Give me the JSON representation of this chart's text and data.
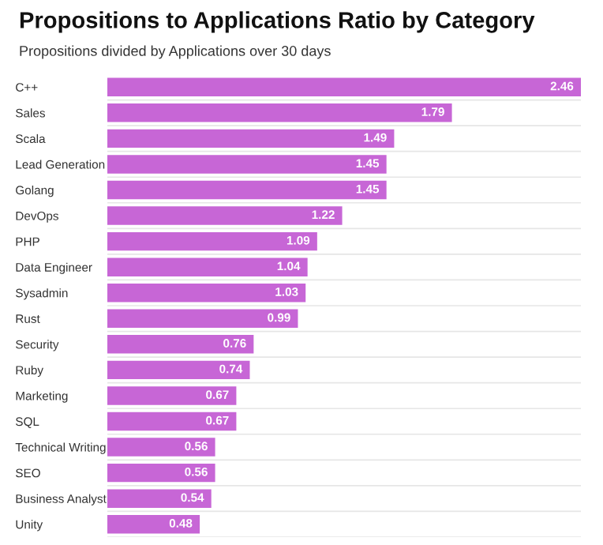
{
  "chart_data": {
    "type": "bar",
    "orientation": "horizontal",
    "title": "Propositions to Applications Ratio by Category",
    "subtitle": "Propositions divided by Applications over 30 days",
    "categories": [
      "C++",
      "Sales",
      "Scala",
      "Lead Generation",
      "Golang",
      "DevOps",
      "PHP",
      "Data Engineer",
      "Sysadmin",
      "Rust",
      "Security",
      "Ruby",
      "Marketing",
      "SQL",
      "Technical Writing",
      "SEO",
      "Business Analyst",
      "Unity"
    ],
    "values": [
      2.46,
      1.79,
      1.49,
      1.45,
      1.45,
      1.22,
      1.09,
      1.04,
      1.03,
      0.99,
      0.76,
      0.74,
      0.67,
      0.67,
      0.56,
      0.56,
      0.54,
      0.48
    ],
    "color": "#c766d6",
    "xlim": [
      0,
      2.46
    ],
    "data_labels": true
  }
}
